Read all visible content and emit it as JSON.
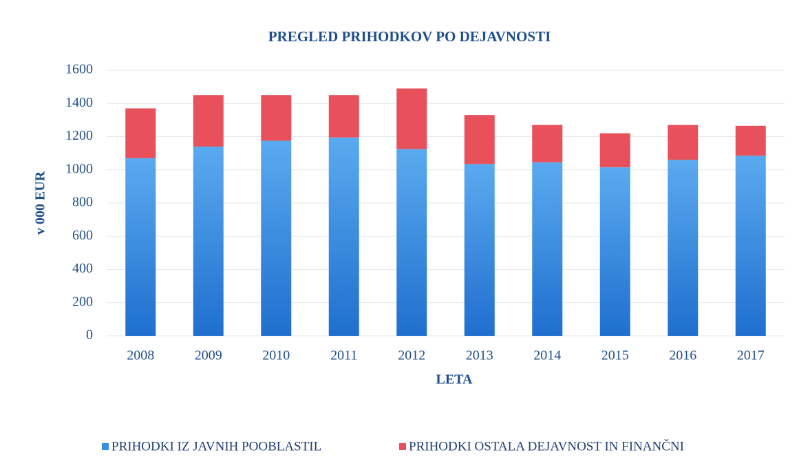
{
  "chart_data": {
    "type": "stacked_bar",
    "title": "PREGLED PRIHODKOV PO DEJAVNOSTI",
    "x_label": "LETA",
    "y_label": "v 000 EUR",
    "categories": [
      "2008",
      "2009",
      "2010",
      "2011",
      "2012",
      "2013",
      "2014",
      "2015",
      "2016",
      "2017"
    ],
    "series": [
      {
        "name": "PRIHODKI IZ JAVNIH POOBLASTIL",
        "color": "#3b8ee0",
        "values": [
          1070,
          1140,
          1175,
          1195,
          1125,
          1035,
          1045,
          1015,
          1060,
          1085
        ]
      },
      {
        "name": "PRIHODKI OSTALA DEJAVNOST IN FINANČNI",
        "color": "#e8505c",
        "values": [
          300,
          310,
          275,
          255,
          365,
          295,
          225,
          205,
          210,
          180
        ]
      }
    ],
    "ylim": [
      0,
      1600
    ],
    "yticks": [
      0,
      200,
      400,
      600,
      800,
      1000,
      1200,
      1400,
      1600
    ],
    "grid": true
  }
}
